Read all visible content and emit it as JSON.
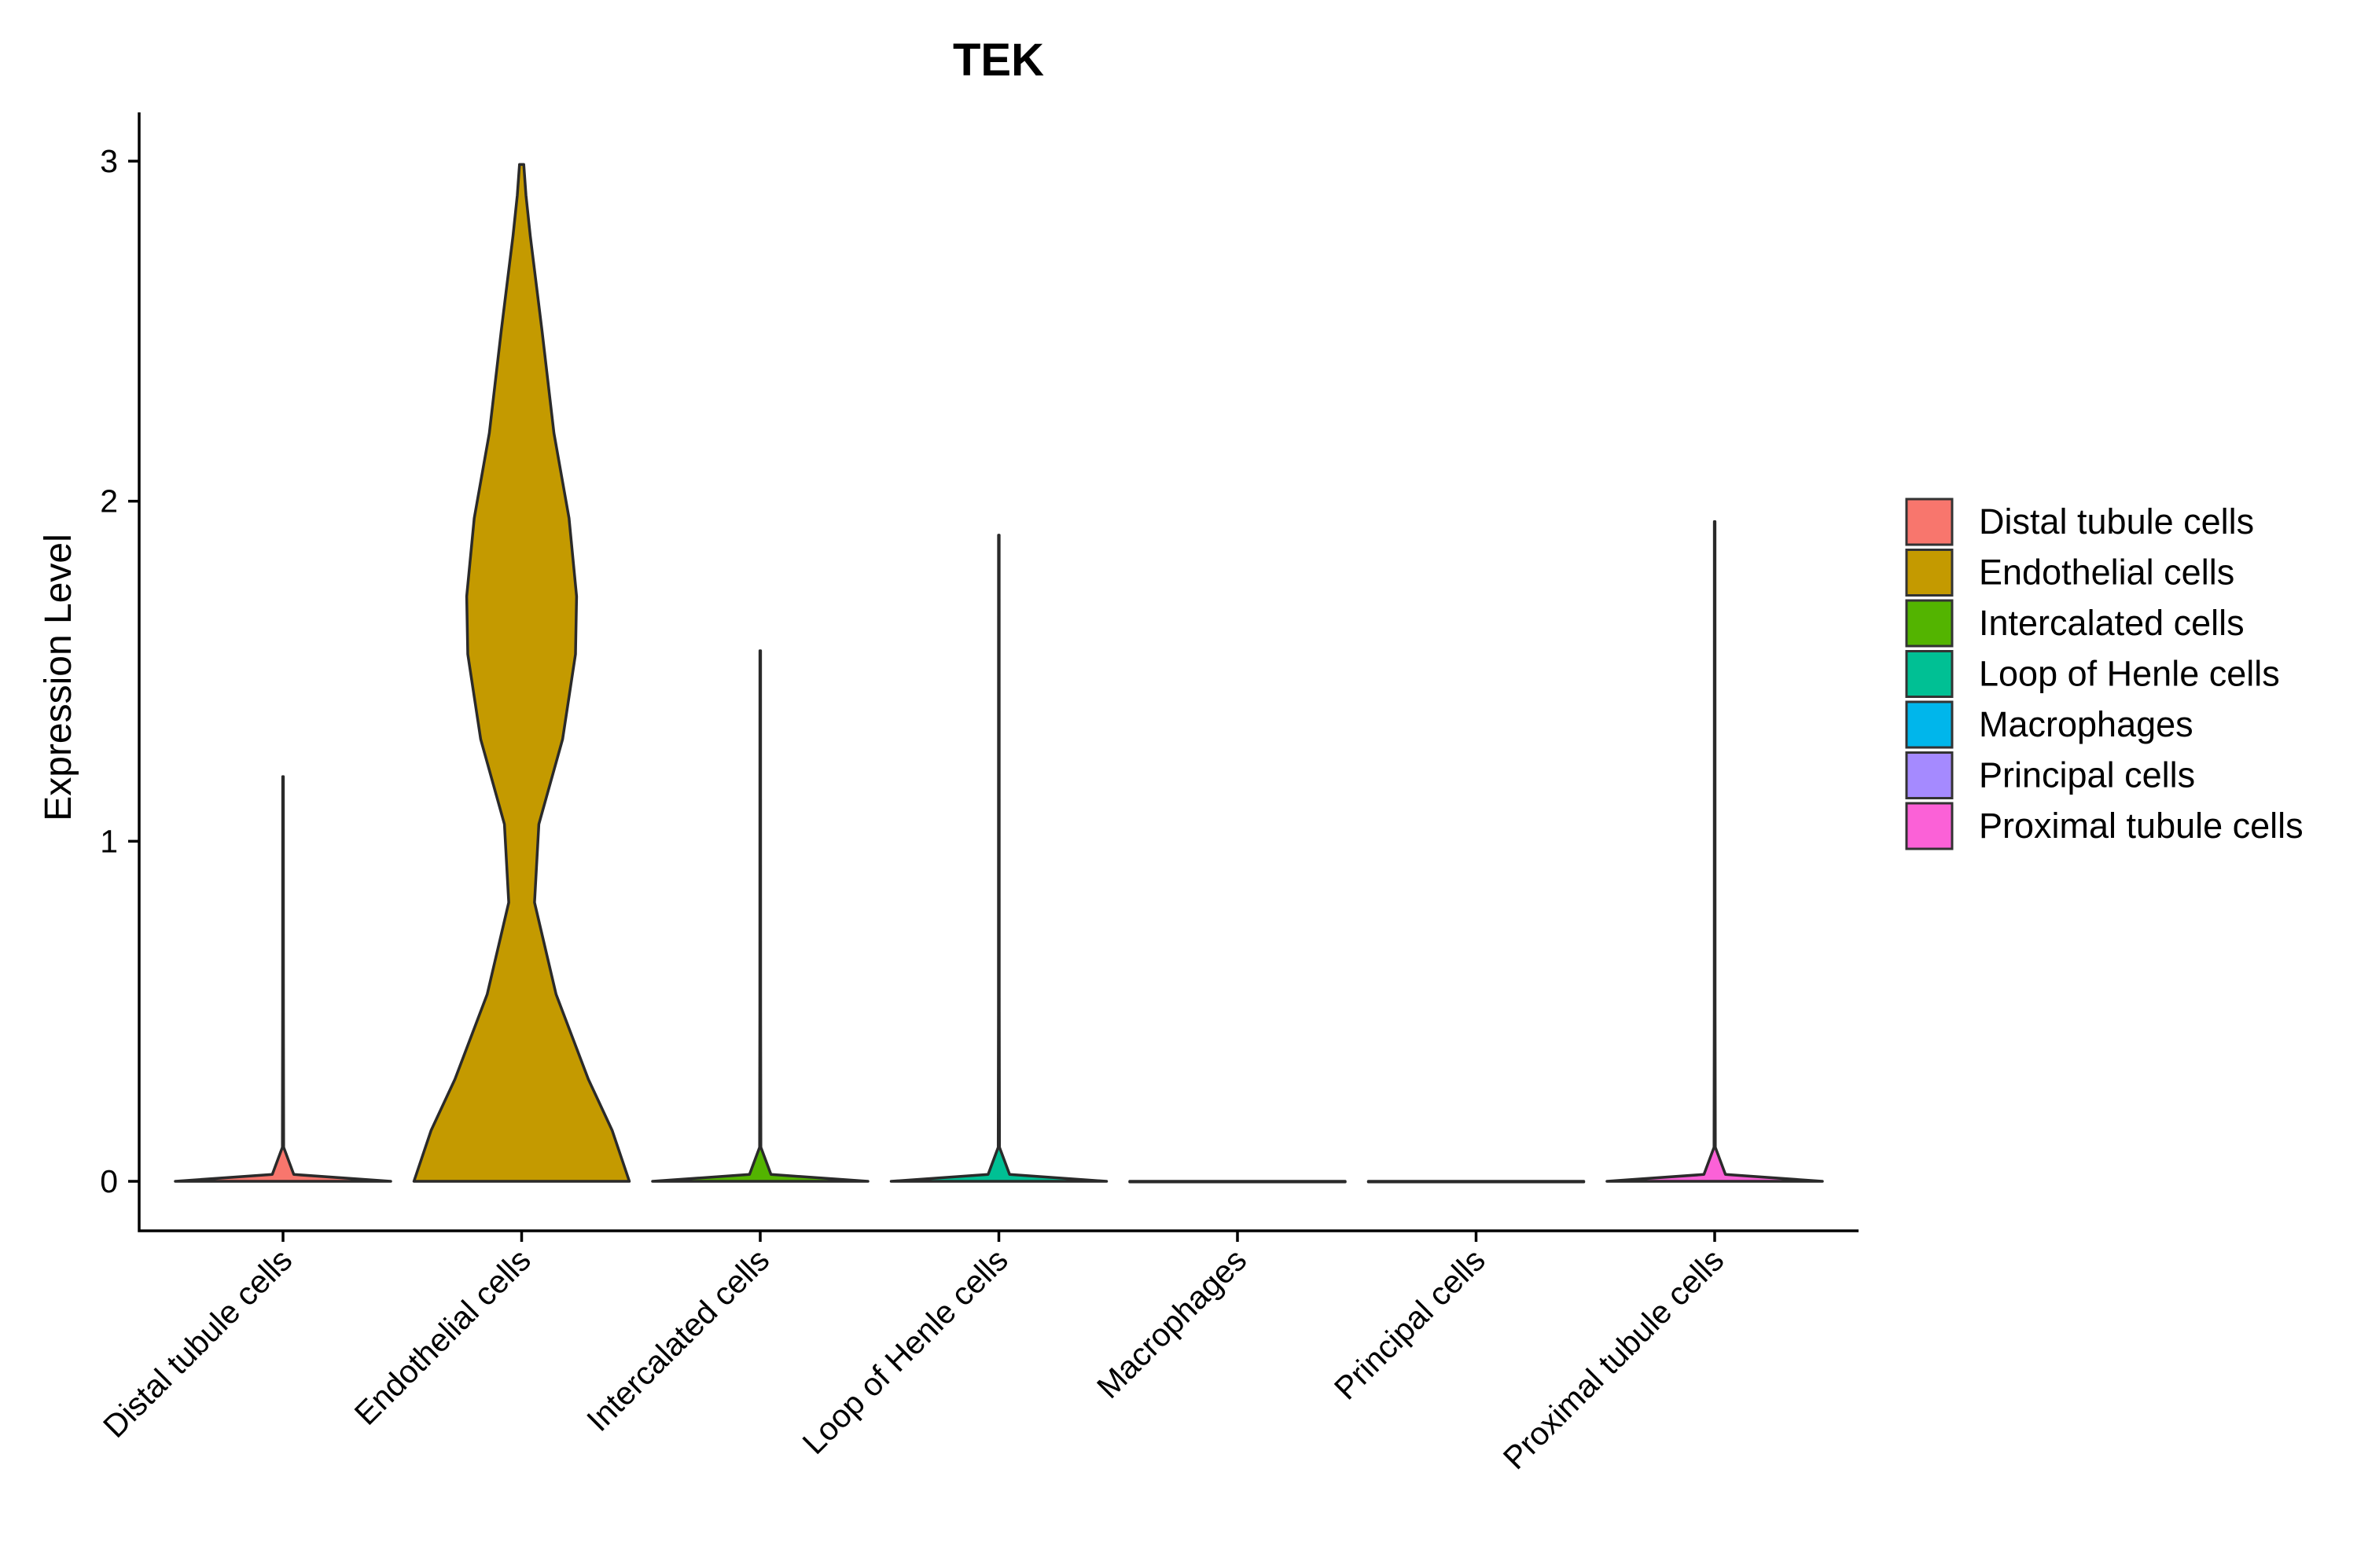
{
  "chart_data": {
    "type": "violin",
    "title": "TEK",
    "xlabel": "",
    "ylabel": "Expression Level",
    "ylim": [
      -0.15,
      3.14
    ],
    "yticks": [
      0,
      1,
      2,
      3
    ],
    "categories": [
      "Distal tubule cells",
      "Endothelial cells",
      "Intercalated cells",
      "Loop of Henle cells",
      "Macrophages",
      "Principal cells",
      "Proximal tubule cells"
    ],
    "colors": [
      "#F8766D",
      "#C49A00",
      "#53B400",
      "#00C094",
      "#00B6EB",
      "#A58AFF",
      "#FB61D7"
    ],
    "violins": [
      {
        "name": "Distal tubule cells",
        "min": 0,
        "max": 1.19,
        "density": [
          [
            0,
            1.0
          ],
          [
            0.02,
            0.1
          ],
          [
            0.1,
            0.006
          ],
          [
            0.5,
            0.004
          ],
          [
            1.19,
            0.003
          ]
        ]
      },
      {
        "name": "Endothelial cells",
        "min": 0,
        "max": 2.99,
        "density": [
          [
            0,
            1.0
          ],
          [
            0.15,
            0.84
          ],
          [
            0.3,
            0.62
          ],
          [
            0.55,
            0.32
          ],
          [
            0.82,
            0.12
          ],
          [
            1.05,
            0.16
          ],
          [
            1.3,
            0.38
          ],
          [
            1.55,
            0.5
          ],
          [
            1.72,
            0.51
          ],
          [
            1.95,
            0.44
          ],
          [
            2.2,
            0.3
          ],
          [
            2.5,
            0.19
          ],
          [
            2.78,
            0.08
          ],
          [
            2.9,
            0.04
          ],
          [
            2.99,
            0.02
          ]
        ]
      },
      {
        "name": "Intercalated cells",
        "min": 0,
        "max": 1.56,
        "density": [
          [
            0,
            1.0
          ],
          [
            0.02,
            0.1
          ],
          [
            0.1,
            0.006
          ],
          [
            0.5,
            0.004
          ],
          [
            1.56,
            0.003
          ]
        ]
      },
      {
        "name": "Loop of Henle cells",
        "min": 0,
        "max": 1.9,
        "density": [
          [
            0,
            1.0
          ],
          [
            0.02,
            0.1
          ],
          [
            0.1,
            0.006
          ],
          [
            0.5,
            0.004
          ],
          [
            1.9,
            0.003
          ]
        ]
      },
      {
        "name": "Macrophages",
        "min": 0,
        "max": 0,
        "density": [
          [
            0,
            1.0
          ]
        ]
      },
      {
        "name": "Principal cells",
        "min": 0,
        "max": 0,
        "density": [
          [
            0,
            1.0
          ]
        ]
      },
      {
        "name": "Proximal tubule cells",
        "min": 0,
        "max": 1.94,
        "density": [
          [
            0,
            1.0
          ],
          [
            0.02,
            0.1
          ],
          [
            0.1,
            0.006
          ],
          [
            0.5,
            0.004
          ],
          [
            1.94,
            0.003
          ]
        ]
      }
    ],
    "legend": {
      "position": "right",
      "entries": [
        "Distal tubule cells",
        "Endothelial cells",
        "Intercalated cells",
        "Loop of Henle cells",
        "Macrophages",
        "Principal cells",
        "Proximal tubule cells"
      ]
    }
  }
}
